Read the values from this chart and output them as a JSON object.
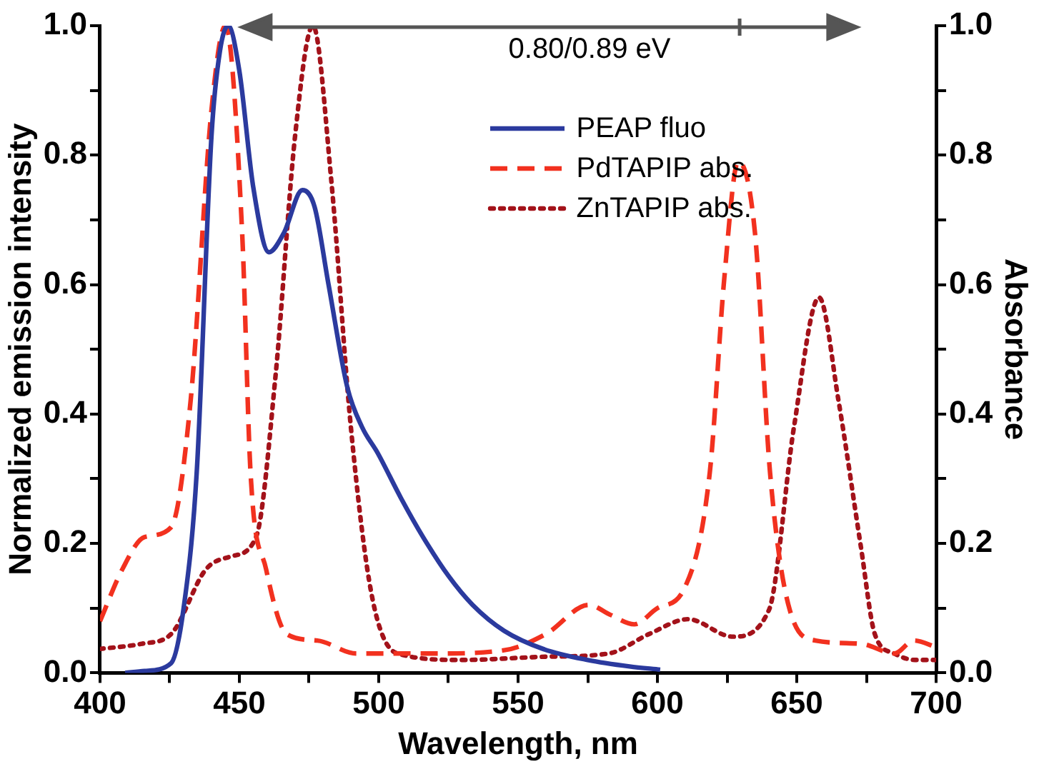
{
  "chart_data": {
    "type": "line",
    "xlabel": "Wavelength, nm",
    "ylabel": "Normalized emission intensity",
    "y2label": "Absorbance",
    "xlim": [
      400,
      700
    ],
    "xticks": [
      400,
      {
        "value": 425,
        "label": null
      },
      450,
      {
        "value": 475,
        "label": null
      },
      500,
      {
        "value": 525,
        "label": null
      },
      550,
      {
        "value": 575,
        "label": null
      },
      600,
      {
        "value": 625,
        "label": null
      },
      650,
      {
        "value": 675,
        "label": null
      },
      700
    ],
    "ylim": [
      0,
      1
    ],
    "yticks": [
      {
        "value": 0,
        "label": "0.0"
      },
      {
        "value": 0.1,
        "label": null
      },
      0.2,
      {
        "value": 0.3,
        "label": null
      },
      0.4,
      {
        "value": 0.5,
        "label": null
      },
      0.6,
      {
        "value": 0.7,
        "label": null
      },
      0.8,
      {
        "value": 0.9,
        "label": null
      },
      {
        "value": 1,
        "label": "1.0"
      }
    ],
    "y2lim": [
      0,
      1
    ],
    "y2ticks": [
      {
        "value": 0,
        "label": "0.0"
      },
      {
        "value": 0.1,
        "label": null
      },
      0.2,
      {
        "value": 0.3,
        "label": null
      },
      0.4,
      {
        "value": 0.5,
        "label": null
      },
      0.6,
      {
        "value": 0.7,
        "label": null
      },
      0.8,
      {
        "value": 0.9,
        "label": null
      },
      {
        "value": 1,
        "label": "1.0"
      }
    ],
    "grid": false,
    "legend": "top right",
    "marker": "none",
    "annotations": [
      "0.80/0.89 eV"
    ],
    "series": [
      {
        "name": "PEAP fluo",
        "color": "#2b3a9e",
        "line_style": "solid",
        "x": [
          409,
          416,
          425.5,
          430,
          434.7,
          440,
          443,
          446,
          450,
          455,
          460.6,
          466,
          472.6,
          477,
          482,
          488.8,
          494,
          499.6,
          508,
          515.9,
          525,
          533.7,
          545,
          559,
          575,
          590,
          601
        ],
        "values": [
          0,
          0.003,
          0.015,
          0.1,
          0.31,
          0.83,
          0.96,
          1.0,
          0.93,
          0.75,
          0.65,
          0.68,
          0.746,
          0.72,
          0.6,
          0.44,
          0.38,
          0.34,
          0.27,
          0.21,
          0.15,
          0.105,
          0.065,
          0.037,
          0.02,
          0.01,
          0.005
        ]
      },
      {
        "name": "PdTAPIP abs.",
        "color": "#f2311f",
        "line_style": "dashed",
        "axis": "y2",
        "x": [
          400,
          408,
          416,
          425.5,
          432.5,
          440,
          445,
          451,
          454,
          459.6,
          467,
          478,
          492,
          520,
          545,
          560,
          575.4,
          583,
          591.7,
          600,
          609.6,
          618.8,
          624,
          629,
          635,
          640.4,
          647.5,
          656.7,
          673,
          685,
          692,
          700
        ],
        "values": [
          0.08,
          0.16,
          0.21,
          0.225,
          0.42,
          0.87,
          1.0,
          0.68,
          0.31,
          0.16,
          0.06,
          0.05,
          0.03,
          0.03,
          0.035,
          0.06,
          0.105,
          0.09,
          0.075,
          0.1,
          0.13,
          0.31,
          0.61,
          0.79,
          0.68,
          0.31,
          0.097,
          0.05,
          0.045,
          0.03,
          0.05,
          0.04
        ]
      },
      {
        "name": "ZnTAPIP abs.",
        "color": "#a3121a",
        "line_style": "dotted",
        "axis": "y2",
        "x": [
          400,
          415,
          425.5,
          438,
          447,
          456,
          463,
          470,
          476.4,
          483,
          490,
          497.5,
          506.7,
          530,
          560,
          582.5,
          597,
          611,
          627,
          640,
          649,
          658,
          665,
          673,
          678,
          685,
          692.4,
          700
        ],
        "values": [
          0.037,
          0.045,
          0.06,
          0.16,
          0.18,
          0.21,
          0.46,
          0.83,
          1.0,
          0.76,
          0.38,
          0.12,
          0.03,
          0.02,
          0.025,
          0.03,
          0.06,
          0.083,
          0.056,
          0.097,
          0.38,
          0.58,
          0.42,
          0.195,
          0.06,
          0.03,
          0.02,
          0.02
        ]
      }
    ]
  }
}
